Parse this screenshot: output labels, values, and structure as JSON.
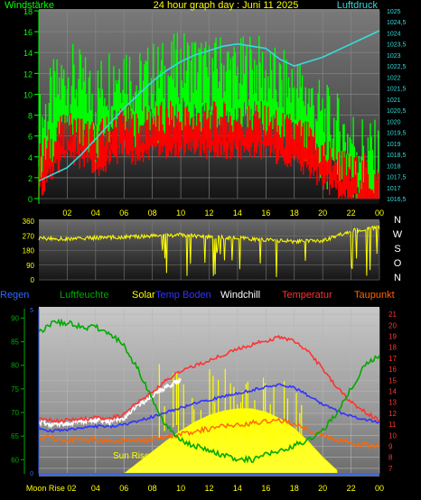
{
  "chart_data": [
    {
      "type": "line",
      "title": "24 hour graph day : Juni 11 2025",
      "left_axis_label": "Windstärke",
      "right_axis_label": "Luftdruck",
      "x_ticks": [
        "02",
        "04",
        "06",
        "08",
        "10",
        "12",
        "14",
        "16",
        "18",
        "20",
        "22",
        "00"
      ],
      "left_ylim": [
        0,
        18
      ],
      "left_ticks": [
        "0",
        "2",
        "4",
        "6",
        "8",
        "10",
        "12",
        "14",
        "16",
        "18"
      ],
      "right_ylim": [
        1016.5,
        1025
      ],
      "right_ticks": [
        "1016,5",
        "1017",
        "1017,5",
        "1018",
        "1018,5",
        "1019",
        "1019,5",
        "1020",
        "1020,5",
        "1021",
        "1021,5",
        "1022",
        "1022,5",
        "1023",
        "1023,5",
        "1024",
        "1024,5",
        "1025"
      ],
      "series": [
        {
          "color": "#00ff00",
          "x": [
            0,
            1,
            2,
            3,
            4,
            5,
            6,
            7,
            8,
            9,
            10,
            11,
            12,
            13,
            14,
            15,
            16,
            17,
            18,
            19,
            20,
            21,
            22,
            23,
            24
          ],
          "y": [
            6,
            9,
            11,
            10,
            9,
            11,
            12,
            10,
            11,
            11,
            12,
            12,
            11,
            12,
            11,
            12,
            11,
            10,
            10,
            9,
            7,
            6,
            5,
            4,
            3
          ]
        },
        {
          "color": "#ff0000",
          "x": [
            0,
            1,
            2,
            3,
            4,
            5,
            6,
            7,
            8,
            9,
            10,
            11,
            12,
            13,
            14,
            15,
            16,
            17,
            18,
            19,
            20,
            21,
            22,
            23,
            24
          ],
          "y": [
            3,
            5,
            6,
            6,
            5,
            6,
            7,
            6,
            7,
            7,
            7,
            7,
            7,
            7,
            7,
            7,
            7,
            6,
            6,
            5,
            4,
            3,
            2,
            2,
            1
          ]
        },
        {
          "color": "#33dddd",
          "axis": "right",
          "x": [
            0,
            1,
            2,
            3,
            4,
            5,
            6,
            7,
            8,
            9,
            10,
            11,
            12,
            13,
            14,
            15,
            16,
            17,
            18,
            19,
            20,
            21,
            22,
            23,
            24
          ],
          "y": [
            1017.3,
            1017.6,
            1017.9,
            1018.5,
            1019.2,
            1019.9,
            1020.6,
            1021.2,
            1021.8,
            1022.3,
            1022.7,
            1023.0,
            1023.2,
            1023.4,
            1023.5,
            1023.4,
            1023.3,
            1022.8,
            1022.5,
            1022.7,
            1022.9,
            1023.2,
            1023.5,
            1023.8,
            1024.1
          ]
        }
      ]
    },
    {
      "type": "line",
      "title": "",
      "ylim": [
        0,
        360
      ],
      "y_ticks": [
        "0",
        "90",
        "180",
        "270",
        "360"
      ],
      "compass": [
        "N",
        "W",
        "S",
        "O",
        "N"
      ],
      "series": [
        {
          "color": "#ffff00",
          "x": [
            0,
            2,
            4,
            6,
            8,
            10,
            12,
            14,
            16,
            18,
            20,
            22,
            24
          ],
          "y": [
            255,
            250,
            258,
            262,
            270,
            275,
            265,
            255,
            245,
            235,
            240,
            300,
            320
          ]
        }
      ]
    },
    {
      "type": "line",
      "title": "",
      "headers": [
        "Regen",
        "Luftfeuchte",
        "Solar",
        "Temp Boden",
        "Windchill",
        "Temperatur",
        "Taupunkt"
      ],
      "header_colors": [
        "#3366ff",
        "#00aa00",
        "#ffff00",
        "#3333ff",
        "#ffffff",
        "#ff3333",
        "#ff6600"
      ],
      "left_ylim": [
        57,
        92
      ],
      "left_ticks": [
        "60",
        "65",
        "70",
        "75",
        "80",
        "85",
        "90"
      ],
      "rain_ticks": [
        "0",
        "5"
      ],
      "right_ylim": [
        6.5,
        21.5
      ],
      "right_ticks": [
        "7",
        "8",
        "9",
        "10",
        "11",
        "12",
        "13",
        "14",
        "15",
        "16",
        "17",
        "18",
        "19",
        "20",
        "21"
      ],
      "x_ticks": [
        "Moon Rise 02",
        "04",
        "06",
        "08",
        "10",
        "12",
        "14",
        "16",
        "18",
        "20",
        "22",
        "00"
      ],
      "annotations": [
        "Sun Rise"
      ],
      "series": [
        {
          "name": "Luftfeuchte",
          "color": "#00aa00",
          "x": [
            0,
            1,
            2,
            3,
            4,
            5,
            6,
            7,
            8,
            9,
            10,
            11,
            12,
            13,
            14,
            15,
            16,
            17,
            18,
            19,
            20,
            21,
            22,
            23,
            24
          ],
          "y": [
            87,
            89,
            89,
            88,
            88,
            87,
            84,
            79,
            73,
            67,
            64,
            63,
            62,
            61,
            60,
            60,
            61,
            62,
            63,
            64,
            66,
            70,
            75,
            80,
            82
          ]
        },
        {
          "name": "Temperatur",
          "color": "#ff3333",
          "x": [
            0,
            1,
            2,
            3,
            4,
            5,
            6,
            7,
            8,
            9,
            10,
            11,
            12,
            13,
            14,
            15,
            16,
            17,
            18,
            19,
            20,
            21,
            22,
            23,
            24
          ],
          "y": [
            11.5,
            11.3,
            11.4,
            11.5,
            11.6,
            11.5,
            11.9,
            13.0,
            14.0,
            15.0,
            15.8,
            16.3,
            16.8,
            17.3,
            17.8,
            18.2,
            18.6,
            18.9,
            18.6,
            17.6,
            16.0,
            14.4,
            13.0,
            12.1,
            11.4
          ]
        },
        {
          "name": "Windchill",
          "color": "#ffffff",
          "x": [
            0,
            1,
            2,
            3,
            4,
            5,
            6,
            7,
            8,
            9,
            10
          ],
          "y": [
            11.2,
            11.0,
            11.1,
            11.3,
            11.4,
            11.2,
            11.6,
            12.7,
            13.6,
            14.4,
            15.0
          ]
        },
        {
          "name": "Temp Boden",
          "color": "#3333ff",
          "x": [
            0,
            1,
            2,
            3,
            4,
            5,
            6,
            7,
            8,
            9,
            10,
            11,
            12,
            13,
            14,
            15,
            16,
            17,
            18,
            19,
            20,
            21,
            22,
            23,
            24
          ],
          "y": [
            10.6,
            10.4,
            10.5,
            10.7,
            10.8,
            10.8,
            11.0,
            11.3,
            11.7,
            12.1,
            12.5,
            12.9,
            13.2,
            13.5,
            13.8,
            14.1,
            14.4,
            14.6,
            14.3,
            13.6,
            12.8,
            12.2,
            11.7,
            11.4,
            11.2
          ]
        },
        {
          "name": "Taupunkt",
          "color": "#ff6600",
          "x": [
            0,
            1,
            2,
            3,
            4,
            5,
            6,
            7,
            8,
            9,
            10,
            11,
            12,
            13,
            14,
            15,
            16,
            17,
            18,
            19,
            20,
            21,
            22,
            23,
            24
          ],
          "y": [
            9.8,
            9.7,
            9.6,
            9.6,
            9.6,
            9.6,
            9.5,
            9.5,
            9.7,
            9.9,
            10.1,
            10.3,
            10.6,
            10.8,
            11.0,
            11.1,
            11.2,
            11.3,
            11.1,
            10.5,
            9.9,
            9.6,
            9.3,
            9.1,
            9.0
          ]
        },
        {
          "name": "Solar",
          "color": "#ffff00",
          "x": [
            6,
            7,
            8,
            9,
            10,
            11,
            12,
            13,
            14,
            15,
            16,
            17,
            18,
            19,
            20,
            21
          ],
          "y": [
            6.5,
            7.5,
            8.5,
            9.5,
            10.4,
            11.2,
            11.8,
            12.2,
            12.4,
            12.4,
            12.1,
            11.5,
            10.6,
            9.4,
            8.0,
            6.8
          ]
        }
      ]
    }
  ]
}
